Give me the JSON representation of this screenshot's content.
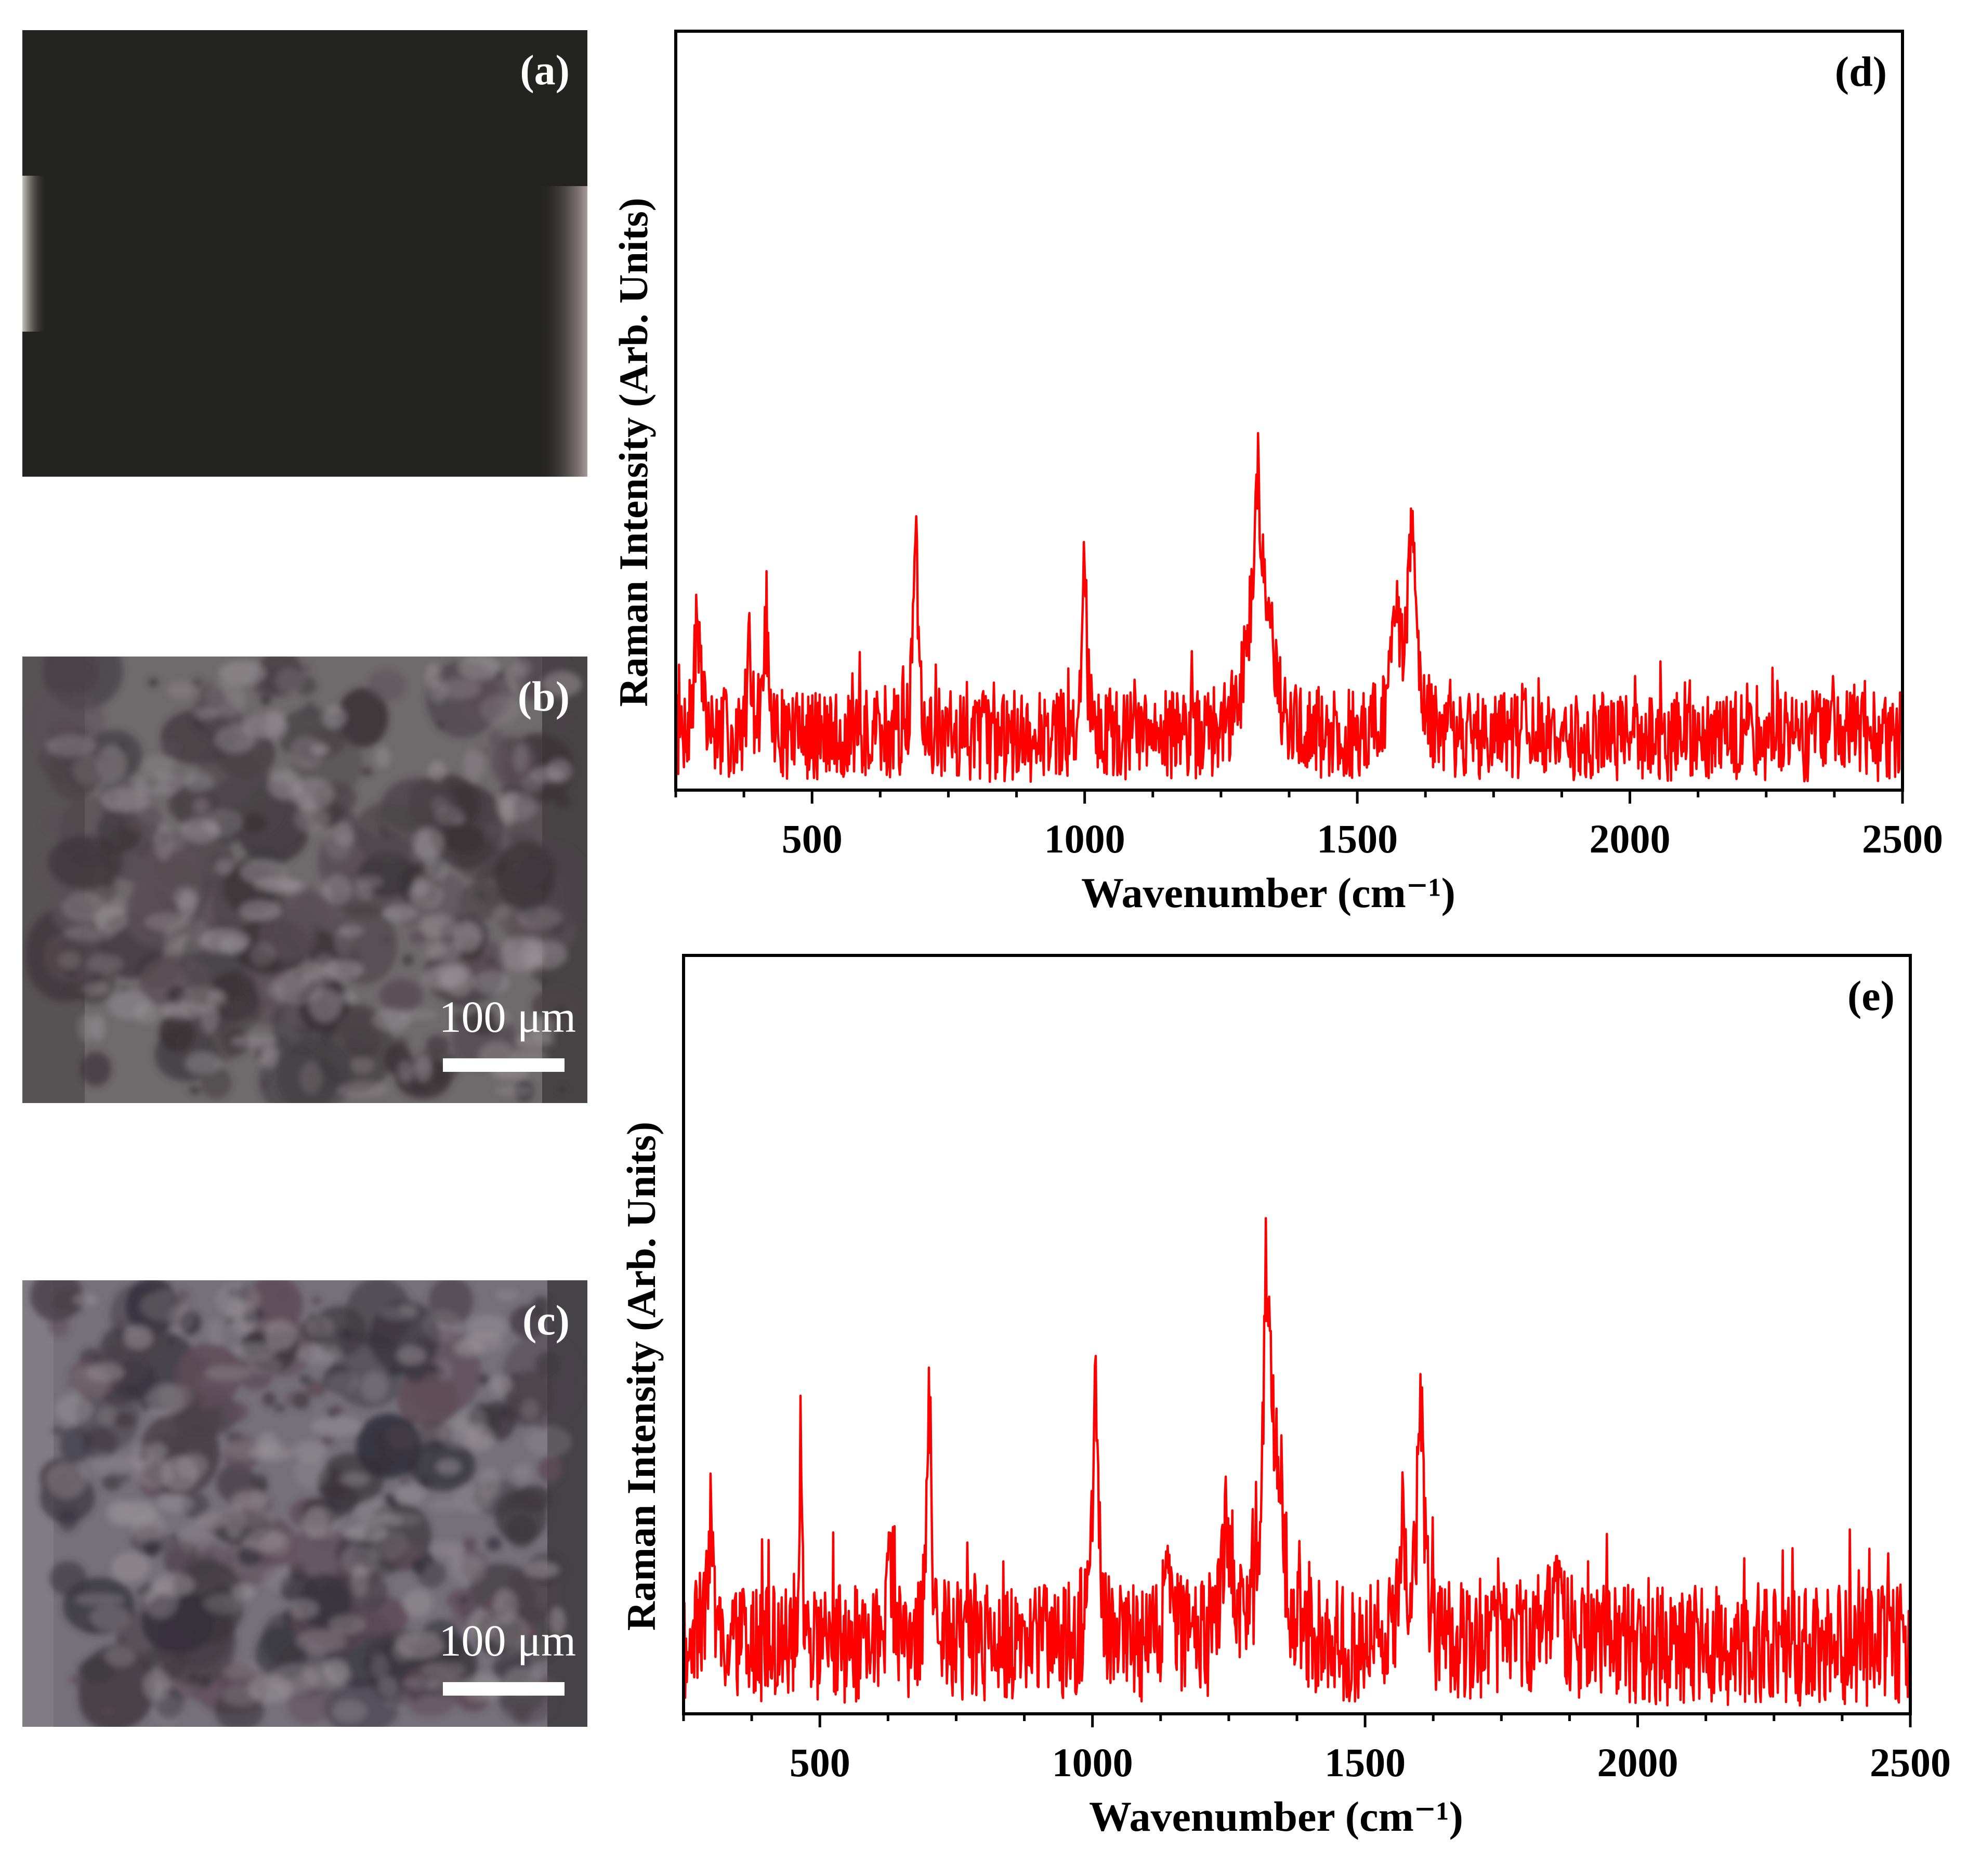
{
  "panels": {
    "a": {
      "label": "(a)"
    },
    "b": {
      "label": "(b)",
      "scale": "100 μm"
    },
    "c": {
      "label": "(c)",
      "scale": "100 μm"
    }
  },
  "colors": {
    "trace": "#ff0000",
    "axis": "#000000"
  },
  "chart_data": [
    {
      "type": "line",
      "panel": "(d)",
      "xlabel": "Wavenumber (cm⁻¹)",
      "ylabel": "Raman Intensity (Arb. Units)",
      "xlim": [
        250,
        2500
      ],
      "ylim": [
        0,
        100
      ],
      "xticks": [
        500,
        1000,
        1500,
        2000,
        2500
      ],
      "baseline": 7,
      "noise": 6,
      "peaks": [
        {
          "x": 290,
          "h": 16,
          "w": 6
        },
        {
          "x": 385,
          "h": 10,
          "w": 5
        },
        {
          "x": 415,
          "h": 14,
          "w": 5
        },
        {
          "x": 690,
          "h": 30,
          "w": 5
        },
        {
          "x": 1000,
          "h": 26,
          "w": 4
        },
        {
          "x": 1318,
          "h": 29,
          "w": 9
        },
        {
          "x": 1340,
          "h": 14,
          "w": 10
        },
        {
          "x": 1300,
          "h": 8,
          "w": 15
        },
        {
          "x": 1570,
          "h": 12,
          "w": 12
        },
        {
          "x": 1600,
          "h": 28,
          "w": 8
        }
      ]
    },
    {
      "type": "line",
      "panel": "(e)",
      "xlabel": "Wavenumber (cm⁻¹)",
      "ylabel": "Raman Intensity (Arb. Units)",
      "xlim": [
        250,
        2500
      ],
      "ylim": [
        0,
        100
      ],
      "xticks": [
        500,
        1000,
        1500,
        2000,
        2500
      ],
      "baseline": 9,
      "noise": 8,
      "peaks": [
        {
          "x": 300,
          "h": 16,
          "w": 7
        },
        {
          "x": 465,
          "h": 22,
          "w": 4
        },
        {
          "x": 630,
          "h": 10,
          "w": 8
        },
        {
          "x": 700,
          "h": 33,
          "w": 5
        },
        {
          "x": 1005,
          "h": 35,
          "w": 5
        },
        {
          "x": 1140,
          "h": 12,
          "w": 8
        },
        {
          "x": 1245,
          "h": 13,
          "w": 8
        },
        {
          "x": 1320,
          "h": 42,
          "w": 9
        },
        {
          "x": 1340,
          "h": 20,
          "w": 12
        },
        {
          "x": 1570,
          "h": 17,
          "w": 6
        },
        {
          "x": 1602,
          "h": 30,
          "w": 7
        },
        {
          "x": 1850,
          "h": 5,
          "w": 20
        }
      ]
    }
  ]
}
